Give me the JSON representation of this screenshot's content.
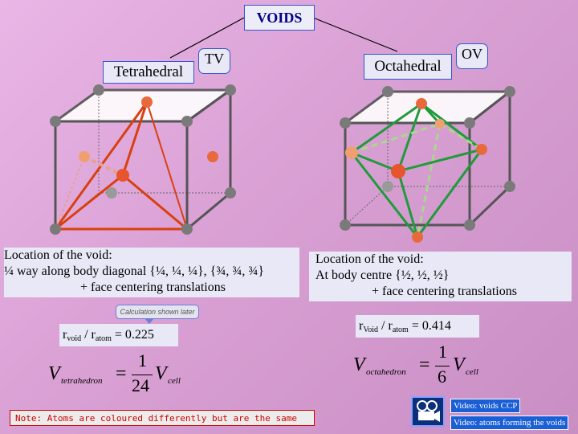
{
  "title": "VOIDS",
  "tetra": {
    "label": "Tetrahedral",
    "abbr": "TV",
    "location_heading": "Location of the void:",
    "location_line": "¼ way along body diagonal {¼, ¼, ¼}, {¾, ¾, ¾}",
    "location_line2": "+ face centering translations",
    "ratio_left": "r",
    "ratio_sub1": "void",
    "ratio_mid": " / r",
    "ratio_sub2": "atom",
    "ratio_value": " = 0.225",
    "formula_lhs": "V",
    "formula_lhs_sub": "tetrahedron",
    "formula_num": "1",
    "formula_den": "24",
    "formula_rhs": "V",
    "formula_rhs_sub": "cell"
  },
  "octa": {
    "label": "Octahedral",
    "abbr": "OV",
    "location_heading": "Location of the void:",
    "location_line": "At body centre {½, ½, ½}",
    "location_line2": "+ face centering translations",
    "ratio_left": "r",
    "ratio_sub1": "Void",
    "ratio_mid": " / r",
    "ratio_sub2": "atom",
    "ratio_value": " = 0.414",
    "formula_lhs": "V",
    "formula_lhs_sub": "octahedron",
    "formula_num": "1",
    "formula_den": "6",
    "formula_rhs": "V",
    "formula_rhs_sub": "cell"
  },
  "callout": "Calculation shown later",
  "note": "Note: Atoms are coloured differently but are the same",
  "video": {
    "link1": "Video: voids CCP",
    "link2": "Video: atoms forming the voids"
  },
  "colors": {
    "tetra_line": "#d94010",
    "octa_line": "#1f9b3a",
    "atom_grey": "#7a7a7a",
    "atom_orange": "#e8754a",
    "note_red": "#cc0000"
  }
}
